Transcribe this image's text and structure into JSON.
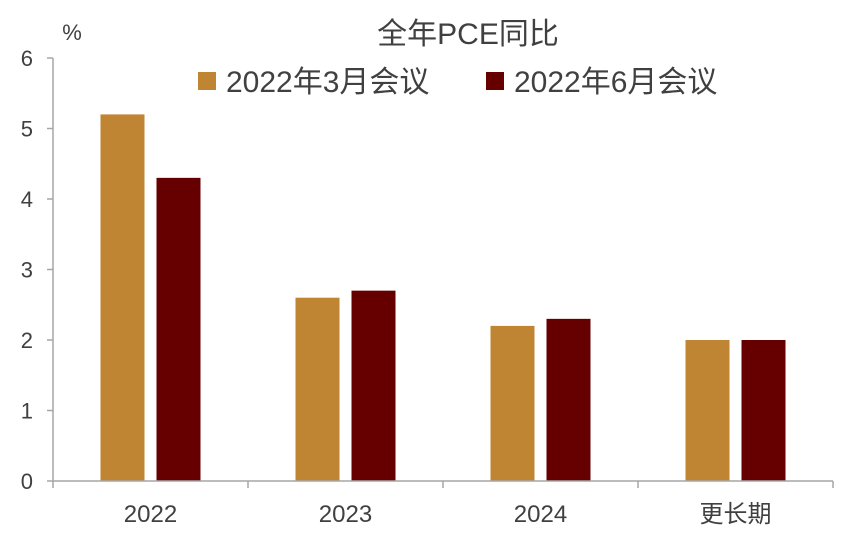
{
  "chart_data": {
    "type": "bar",
    "title": "全年PCE同比",
    "ylabel": "%",
    "xlabel": "",
    "ylim": [
      0,
      6
    ],
    "yticks": [
      0,
      1,
      2,
      3,
      4,
      5,
      6
    ],
    "categories": [
      "2022",
      "2023",
      "2024",
      "更长期"
    ],
    "series": [
      {
        "name": "2022年3月会议",
        "color": "#C08532",
        "values": [
          5.2,
          2.6,
          2.2,
          2.0
        ]
      },
      {
        "name": "2022年6月会议",
        "color": "#660000",
        "values": [
          4.3,
          2.7,
          2.3,
          2.0
        ]
      }
    ],
    "legend_position": "top",
    "grid": false,
    "axis_color": "#A6A6A6"
  }
}
